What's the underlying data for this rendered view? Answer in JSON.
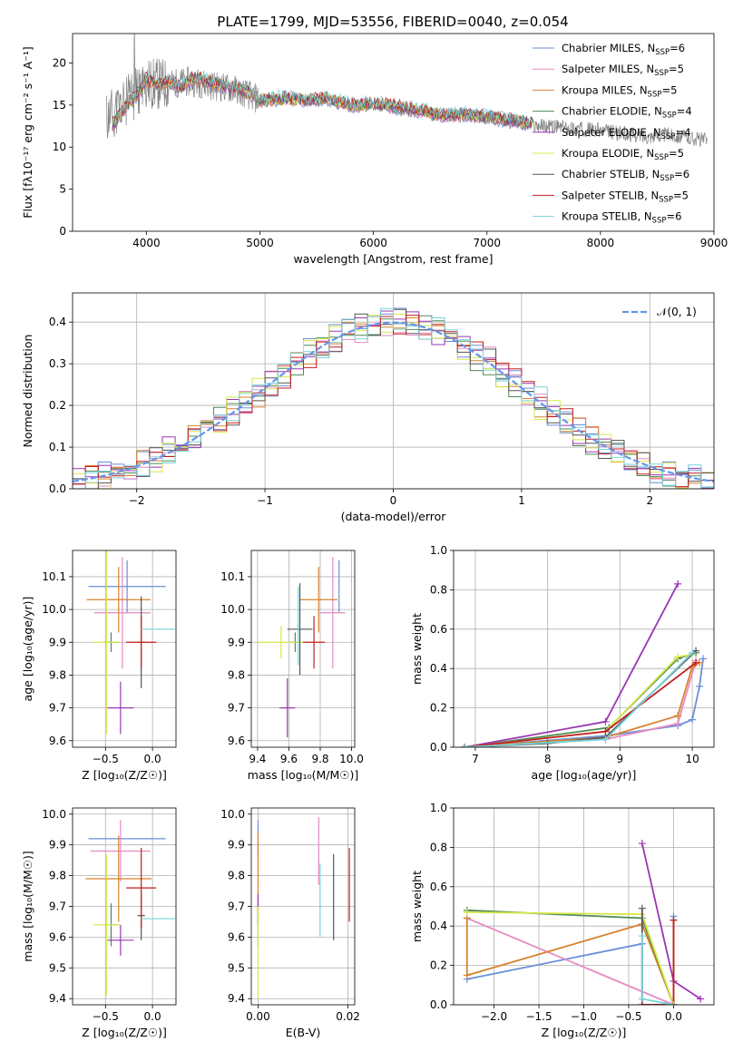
{
  "title": "PLATE=1799, MJD=53556, FIBERID=0040, z=0.054",
  "colors": {
    "chabrier_miles": "#6a8ed9",
    "salpeter_miles": "#e68ac2",
    "kroupa_miles": "#d8822c",
    "chabrier_elodie": "#4f8a55",
    "salpeter_elodie": "#9b36b4",
    "kroupa_elodie": "#d9e84d",
    "chabrier_stelib": "#555555",
    "salpeter_stelib": "#c21f1f",
    "kroupa_stelib": "#78d3d8",
    "data_spectrum": "#808080",
    "gaussian": "#6495ed",
    "grid": "#b0b0b0"
  },
  "chart_data": [
    {
      "id": "spectrum",
      "type": "line",
      "xlabel": "wavelength [Angstrom, rest frame]",
      "ylabel": "Flux [f$_\\lambda$10$^{-17}$ erg cm$^{-2}$ s$^{-1}$ A$^{-1}$]",
      "ylabel_display": "Flux [fλ10⁻¹⁷ erg cm⁻² s⁻¹ A⁻¹]",
      "xlim": [
        3350,
        9000
      ],
      "ylim": [
        0,
        23.5
      ],
      "xticks": [
        4000,
        5000,
        6000,
        7000,
        8000,
        9000
      ],
      "yticks": [
        0,
        5,
        10,
        15,
        20
      ],
      "grid": false,
      "legend_position": "top-right",
      "legend": [
        {
          "label": "Chabrier MILES, N$_{SSP}$=6",
          "base": "Chabrier MILES, N",
          "sub": "SSP",
          "tail": "=6",
          "color_key": "chabrier_miles"
        },
        {
          "label": "Salpeter MILES, N$_{SSP}$=5",
          "base": "Salpeter MILES, N",
          "sub": "SSP",
          "tail": "=5",
          "color_key": "salpeter_miles"
        },
        {
          "label": "Kroupa MILES, N$_{SSP}$=5",
          "base": "Kroupa MILES, N",
          "sub": "SSP",
          "tail": "=5",
          "color_key": "kroupa_miles"
        },
        {
          "label": "Chabrier ELODIE, N$_{SSP}$=4",
          "base": "Chabrier ELODIE, N",
          "sub": "SSP",
          "tail": "=4",
          "color_key": "chabrier_elodie"
        },
        {
          "label": "Salpeter ELODIE, N$_{SSP}$=4",
          "base": "Salpeter ELODIE, N",
          "sub": "SSP",
          "tail": "=4",
          "color_key": "salpeter_elodie"
        },
        {
          "label": "Kroupa ELODIE, N$_{SSP}$=5",
          "base": "Kroupa ELODIE, N",
          "sub": "SSP",
          "tail": "=5",
          "color_key": "kroupa_elodie"
        },
        {
          "label": "Chabrier STELIB, N$_{SSP}$=6",
          "base": "Chabrier STELIB, N",
          "sub": "SSP",
          "tail": "=6",
          "color_key": "chabrier_stelib"
        },
        {
          "label": "Salpeter STELIB, N$_{SSP}$=5",
          "base": "Salpeter STELIB, N",
          "sub": "SSP",
          "tail": "=5",
          "color_key": "salpeter_stelib"
        },
        {
          "label": "Kroupa STELIB, N$_{SSP}$=6",
          "base": "Kroupa STELIB, N",
          "sub": "SSP",
          "tail": "=6",
          "color_key": "kroupa_stelib"
        }
      ],
      "model_continuum": {
        "x": [
          3700,
          3800,
          3900,
          4000,
          4100,
          4200,
          4300,
          4400,
          4500,
          4600,
          4700,
          4800,
          4900,
          5000,
          5200,
          5400,
          5600,
          5800,
          6000,
          6200,
          6400,
          6600,
          6800,
          7000,
          7200,
          7400
        ],
        "y": [
          12.5,
          14.5,
          16.0,
          18.0,
          17.5,
          17.8,
          17.0,
          18.2,
          18.0,
          17.5,
          17.2,
          17.0,
          16.5,
          15.6,
          15.8,
          15.6,
          15.8,
          15.0,
          15.2,
          14.8,
          14.4,
          13.8,
          13.9,
          13.6,
          13.2,
          12.8
        ]
      },
      "data_continuum": {
        "x": [
          3650,
          3800,
          4000,
          4200,
          4400,
          4600,
          4800,
          5000,
          5200,
          5400,
          5600,
          5800,
          6000,
          6200,
          6400,
          6600,
          6800,
          7000,
          7200,
          7400,
          7600,
          7800,
          8000,
          8200,
          8400,
          8600,
          8800,
          8940
        ],
        "y": [
          13.5,
          15.0,
          17.5,
          17.5,
          17.8,
          17.3,
          16.8,
          15.6,
          15.8,
          15.6,
          15.6,
          15.0,
          15.1,
          14.7,
          14.3,
          13.8,
          13.8,
          13.5,
          13.1,
          12.6,
          12.4,
          12.2,
          12.0,
          11.6,
          11.3,
          11.5,
          11.1,
          10.8
        ]
      }
    },
    {
      "id": "residuals",
      "type": "line",
      "xlabel": "(data-model)/error",
      "ylabel": "Normed distribution",
      "xlim": [
        -2.5,
        2.5
      ],
      "ylim": [
        0,
        0.47
      ],
      "xticks": [
        -2,
        -1,
        0,
        1,
        2
      ],
      "yticks": [
        0.0,
        0.1,
        0.2,
        0.3,
        0.4
      ],
      "grid": true,
      "legend_position": "top-right",
      "legend": [
        {
          "label": "$\\mathcal{N}(0,1)$",
          "display": "𝒩(0, 1)",
          "color_key": "gaussian"
        }
      ],
      "bin_width": 0.1,
      "series": [
        {
          "color_key": "chabrier_miles",
          "bias": -0.01,
          "seed": 1
        },
        {
          "color_key": "salpeter_miles",
          "bias": 0.03,
          "seed": 2
        },
        {
          "color_key": "kroupa_miles",
          "bias": 0.0,
          "seed": 3
        },
        {
          "color_key": "chabrier_elodie",
          "bias": -0.02,
          "seed": 4
        },
        {
          "color_key": "salpeter_elodie",
          "bias": -0.03,
          "seed": 5
        },
        {
          "color_key": "kroupa_elodie",
          "bias": -0.02,
          "seed": 6
        },
        {
          "color_key": "chabrier_stelib",
          "bias": 0.0,
          "seed": 7
        },
        {
          "color_key": "salpeter_stelib",
          "bias": 0.01,
          "seed": 8
        },
        {
          "color_key": "kroupa_stelib",
          "bias": 0.02,
          "seed": 9
        }
      ]
    },
    {
      "id": "age_vs_Z",
      "type": "scatter",
      "xlabel": "Z [log$_{10}$(Z/Z$_\\odot$)]",
      "xlabel_display": "Z [log₁₀(Z/Z☉)]",
      "ylabel": "age  [log$_{10}$(age/yr)]",
      "ylabel_display": "age  [log₁₀(age/yr)]",
      "xlim": [
        -0.85,
        0.25
      ],
      "ylim": [
        9.58,
        10.18
      ],
      "xticks": [
        -0.5,
        0.0
      ],
      "yticks": [
        9.6,
        9.7,
        9.8,
        9.9,
        10.0,
        10.1
      ],
      "grid": true,
      "points": [
        {
          "color_key": "chabrier_miles",
          "x": -0.27,
          "xerr": 0.41,
          "y": 10.07,
          "yerr": 0.08
        },
        {
          "color_key": "salpeter_miles",
          "x": -0.32,
          "xerr": 0.3,
          "y": 9.99,
          "yerr": 0.17
        },
        {
          "color_key": "kroupa_miles",
          "x": -0.36,
          "xerr": 0.34,
          "y": 10.03,
          "yerr": 0.1
        },
        {
          "color_key": "chabrier_elodie",
          "x": -0.44,
          "xerr": 0.08,
          "y": 9.9,
          "yerr": 0.03
        },
        {
          "color_key": "salpeter_elodie",
          "x": -0.34,
          "xerr": 0.14,
          "y": 9.7,
          "yerr": 0.08
        },
        {
          "color_key": "kroupa_elodie",
          "x": -0.49,
          "xerr": 0.14,
          "y": 9.9,
          "yerr": 0.28
        },
        {
          "color_key": "chabrier_stelib",
          "x": -0.12,
          "xerr": 0.04,
          "y": 9.9,
          "yerr": 0.14
        },
        {
          "color_key": "salpeter_stelib",
          "x": -0.12,
          "xerr": 0.16,
          "y": 9.9,
          "yerr": 0.08
        },
        {
          "color_key": "kroupa_stelib",
          "x": 0.06,
          "xerr": 0.18,
          "y": 9.94,
          "yerr": 0.0
        }
      ]
    },
    {
      "id": "age_vs_mass",
      "type": "scatter",
      "xlabel": "mass [log$_{10}$(M/M$_\\odot$)]",
      "xlabel_display": "mass [log₁₀(M/M☉)]",
      "ylabel": "",
      "xlim": [
        9.36,
        10.02
      ],
      "ylim": [
        9.58,
        10.18
      ],
      "xticks": [
        9.4,
        9.6,
        9.8,
        10.0
      ],
      "yticks": [
        9.6,
        9.7,
        9.8,
        9.9,
        10.0,
        10.1
      ],
      "grid": true,
      "points": [
        {
          "color_key": "chabrier_miles",
          "x": 9.92,
          "xerr": 0.0,
          "y": 10.07,
          "yerr": 0.08
        },
        {
          "color_key": "salpeter_miles",
          "x": 9.88,
          "xerr": 0.08,
          "y": 9.99,
          "yerr": 0.17
        },
        {
          "color_key": "kroupa_miles",
          "x": 9.79,
          "xerr": 0.12,
          "y": 10.03,
          "yerr": 0.1
        },
        {
          "color_key": "chabrier_elodie",
          "x": 9.64,
          "xerr": 0.04,
          "y": 9.9,
          "yerr": 0.03
        },
        {
          "color_key": "salpeter_elodie",
          "x": 9.59,
          "xerr": 0.05,
          "y": 9.7,
          "yerr": 0.09
        },
        {
          "color_key": "kroupa_elodie",
          "x": 9.55,
          "xerr": 0.15,
          "y": 9.9,
          "yerr": 0.05
        },
        {
          "color_key": "chabrier_stelib",
          "x": 9.67,
          "xerr": 0.08,
          "y": 9.94,
          "yerr": 0.14
        },
        {
          "color_key": "salpeter_stelib",
          "x": 9.76,
          "xerr": 0.07,
          "y": 9.9,
          "yerr": 0.08
        },
        {
          "color_key": "kroupa_stelib",
          "x": 9.66,
          "xerr": 0.01,
          "y": 9.95,
          "yerr": 0.12
        }
      ]
    },
    {
      "id": "weight_vs_age",
      "type": "line",
      "xlabel": "age  [log$_{10}$(age/yr)]",
      "xlabel_display": "age  [log₁₀(age/yr)]",
      "ylabel": "mass weight",
      "xlim": [
        6.7,
        10.3
      ],
      "ylim": [
        0,
        1.0
      ],
      "xticks": [
        7,
        8,
        9,
        10
      ],
      "yticks": [
        0.0,
        0.2,
        0.4,
        0.6,
        0.8,
        1.0
      ],
      "grid": true,
      "series": [
        {
          "color_key": "chabrier_miles",
          "x": [
            6.85,
            8.85,
            9.8,
            10.0,
            10.1,
            10.15
          ],
          "y": [
            0.0,
            0.06,
            0.11,
            0.14,
            0.31,
            0.45
          ]
        },
        {
          "color_key": "salpeter_miles",
          "x": [
            6.85,
            8.8,
            9.8,
            10.05
          ],
          "y": [
            0.0,
            0.04,
            0.12,
            0.44
          ]
        },
        {
          "color_key": "kroupa_miles",
          "x": [
            6.85,
            8.8,
            9.8,
            10.0,
            10.1
          ],
          "y": [
            0.0,
            0.05,
            0.16,
            0.41,
            0.43
          ]
        },
        {
          "color_key": "chabrier_elodie",
          "x": [
            6.85,
            8.85,
            9.8,
            10.05
          ],
          "y": [
            0.0,
            0.1,
            0.45,
            0.48
          ]
        },
        {
          "color_key": "salpeter_elodie",
          "x": [
            6.85,
            8.8,
            9.8
          ],
          "y": [
            0.0,
            0.13,
            0.83
          ]
        },
        {
          "color_key": "kroupa_elodie",
          "x": [
            6.85,
            8.8,
            9.8,
            10.0
          ],
          "y": [
            0.0,
            0.08,
            0.46,
            0.47
          ]
        },
        {
          "color_key": "chabrier_stelib",
          "x": [
            6.85,
            8.0,
            8.8,
            10.05
          ],
          "y": [
            0.0,
            0.02,
            0.05,
            0.49
          ]
        },
        {
          "color_key": "salpeter_stelib",
          "x": [
            6.85,
            8.8,
            10.05
          ],
          "y": [
            0.0,
            0.08,
            0.43
          ]
        },
        {
          "color_key": "kroupa_stelib",
          "x": [
            6.85,
            8.8,
            10.0
          ],
          "y": [
            0.0,
            0.04,
            0.48
          ]
        }
      ]
    },
    {
      "id": "mass_vs_Z",
      "type": "scatter",
      "xlabel": "Z [log$_{10}$(Z/Z$_\\odot$)]",
      "xlabel_display": "Z [log₁₀(Z/Z☉)]",
      "ylabel": "mass [log$_{10}$(M/M$_\\odot$)]",
      "ylabel_display": "mass [log₁₀(M/M☉)]",
      "xlim": [
        -0.85,
        0.25
      ],
      "ylim": [
        9.38,
        10.02
      ],
      "xticks": [
        -0.5,
        0.0
      ],
      "yticks": [
        9.4,
        9.5,
        9.6,
        9.7,
        9.8,
        9.9,
        10.0
      ],
      "grid": true,
      "points": [
        {
          "color_key": "chabrier_miles",
          "x": -0.27,
          "xerr": 0.41,
          "y": 9.92,
          "yerr": 0.0
        },
        {
          "color_key": "salpeter_miles",
          "x": -0.34,
          "xerr": 0.32,
          "y": 9.88,
          "yerr": 0.1
        },
        {
          "color_key": "kroupa_miles",
          "x": -0.36,
          "xerr": 0.35,
          "y": 9.79,
          "yerr": 0.14
        },
        {
          "color_key": "chabrier_elodie",
          "x": -0.44,
          "xerr": 0.08,
          "y": 9.64,
          "yerr": 0.07
        },
        {
          "color_key": "salpeter_elodie",
          "x": -0.34,
          "xerr": 0.14,
          "y": 9.59,
          "yerr": 0.05
        },
        {
          "color_key": "kroupa_elodie",
          "x": -0.49,
          "xerr": 0.14,
          "y": 9.64,
          "yerr": 0.23
        },
        {
          "color_key": "chabrier_stelib",
          "x": -0.12,
          "xerr": 0.04,
          "y": 9.67,
          "yerr": 0.08
        },
        {
          "color_key": "salpeter_stelib",
          "x": -0.12,
          "xerr": 0.16,
          "y": 9.76,
          "yerr": 0.13
        },
        {
          "color_key": "kroupa_stelib",
          "x": 0.06,
          "xerr": 0.18,
          "y": 9.66,
          "yerr": 0.0
        }
      ]
    },
    {
      "id": "mass_vs_ebv",
      "type": "scatter",
      "xlabel": "E(B-V)",
      "ylabel": "",
      "xlim": [
        -0.0015,
        0.0215
      ],
      "ylim": [
        9.38,
        10.02
      ],
      "xticks": [
        0.0,
        0.02
      ],
      "xtick_labels": [
        "0.00",
        "0.02"
      ],
      "yticks": [
        9.4,
        9.5,
        9.6,
        9.7,
        9.8,
        9.9,
        10.0
      ],
      "grid": true,
      "points": [
        {
          "color_key": "chabrier_miles",
          "x": 0.0,
          "xerr": 0.0,
          "y": 9.92,
          "yerr": 0.06
        },
        {
          "color_key": "salpeter_miles",
          "x": 0.0135,
          "xerr": 0.0,
          "y": 9.88,
          "yerr": 0.11
        },
        {
          "color_key": "kroupa_miles",
          "x": 0.0,
          "xerr": 0.0,
          "y": 9.79,
          "yerr": 0.15
        },
        {
          "color_key": "chabrier_elodie",
          "x": 0.0,
          "xerr": 0.0,
          "y": 9.64,
          "yerr": 0.07
        },
        {
          "color_key": "salpeter_elodie",
          "x": 0.0,
          "xerr": 0.0,
          "y": 9.69,
          "yerr": 0.05
        },
        {
          "color_key": "kroupa_elodie",
          "x": 0.0,
          "xerr": 0.0,
          "y": 9.55,
          "yerr": 0.15
        },
        {
          "color_key": "chabrier_stelib",
          "x": 0.0168,
          "xerr": 0.0,
          "y": 9.73,
          "yerr": 0.14
        },
        {
          "color_key": "salpeter_stelib",
          "x": 0.0203,
          "xerr": 0.0,
          "y": 9.77,
          "yerr": 0.12
        },
        {
          "color_key": "kroupa_stelib",
          "x": 0.0138,
          "xerr": 0.0,
          "y": 9.72,
          "yerr": 0.12
        }
      ]
    },
    {
      "id": "weight_vs_Z",
      "type": "line",
      "xlabel": "Z [log$_{10}$(Z/Z$_\\odot$)]",
      "xlabel_display": "Z [log₁₀(Z/Z☉)]",
      "ylabel": "mass weight",
      "xlim": [
        -2.45,
        0.45
      ],
      "ylim": [
        0,
        1.0
      ],
      "xticks": [
        -2.0,
        -1.5,
        -1.0,
        -0.5,
        0.0
      ],
      "xtick_labels": [
        "−2.0",
        "−1.5",
        "−1.0",
        "−0.5",
        "0.0"
      ],
      "yticks": [
        0.0,
        0.2,
        0.4,
        0.6,
        0.8,
        1.0
      ],
      "grid": true,
      "series": [
        {
          "color_key": "chabrier_miles",
          "x": [
            -2.3,
            -0.35,
            -0.35,
            0.0,
            0.0
          ],
          "y": [
            0.13,
            0.31,
            0.0,
            0.0,
            0.45
          ]
        },
        {
          "color_key": "salpeter_miles",
          "x": [
            -2.3,
            0.0,
            0.0
          ],
          "y": [
            0.44,
            0.0,
            0.0
          ]
        },
        {
          "color_key": "kroupa_miles",
          "x": [
            -2.3,
            -2.3,
            -0.35,
            0.0,
            0.0
          ],
          "y": [
            0.44,
            0.15,
            0.41,
            0.0,
            0.43
          ]
        },
        {
          "color_key": "chabrier_elodie",
          "x": [
            -2.3,
            -0.35,
            0.0
          ],
          "y": [
            0.48,
            0.44,
            0.0
          ]
        },
        {
          "color_key": "salpeter_elodie",
          "x": [
            -0.35,
            0.0,
            0.3
          ],
          "y": [
            0.82,
            0.12,
            0.03
          ]
        },
        {
          "color_key": "kroupa_elodie",
          "x": [
            -2.3,
            -0.35,
            0.0
          ],
          "y": [
            0.47,
            0.46,
            0.0
          ]
        },
        {
          "color_key": "chabrier_stelib",
          "x": [
            -0.35,
            -0.35,
            0.0
          ],
          "y": [
            0.49,
            0.0,
            0.0
          ]
        },
        {
          "color_key": "salpeter_stelib",
          "x": [
            -0.35,
            0.0,
            0.0
          ],
          "y": [
            0.0,
            0.0,
            0.43
          ]
        },
        {
          "color_key": "kroupa_stelib",
          "x": [
            -0.35,
            -0.35,
            0.0
          ],
          "y": [
            0.35,
            0.03,
            0.0
          ]
        }
      ]
    }
  ]
}
